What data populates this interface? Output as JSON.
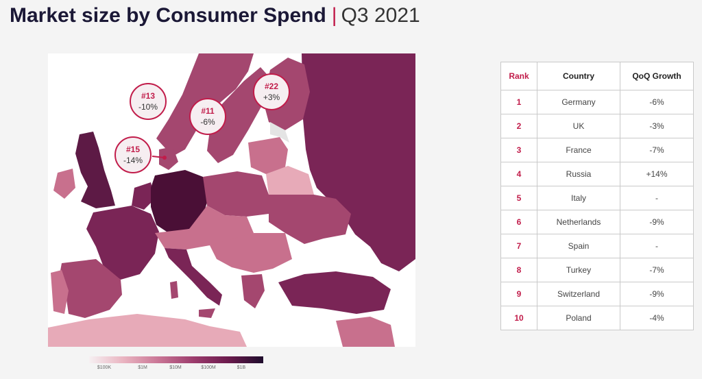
{
  "header": {
    "title": "Market size by Consumer Spend",
    "separator": "|",
    "period": "Q3 2021"
  },
  "map": {
    "callouts": [
      {
        "rank": "#13",
        "growth": "-10%"
      },
      {
        "rank": "#11",
        "growth": "-6%"
      },
      {
        "rank": "#22",
        "growth": "+3%"
      },
      {
        "rank": "#15",
        "growth": "-14%"
      }
    ],
    "legend": {
      "ticks": [
        "$100K",
        "$1M",
        "$10M",
        "$100M",
        "$1B"
      ]
    },
    "colors": {
      "sea": "#ffffff",
      "nodata": "#e4e4e4",
      "light": "#e7aab8",
      "mid_light": "#c8708d",
      "mid": "#a4476f",
      "dark": "#7a2556",
      "darkest": "#4a0f36",
      "accent": "#c11c4a"
    }
  },
  "table": {
    "headers": [
      "Rank",
      "Country",
      "QoQ Growth"
    ],
    "rows": [
      [
        "1",
        "Germany",
        "-6%"
      ],
      [
        "2",
        "UK",
        "-3%"
      ],
      [
        "3",
        "France",
        "-7%"
      ],
      [
        "4",
        "Russia",
        "+14%"
      ],
      [
        "5",
        "Italy",
        "-"
      ],
      [
        "6",
        "Netherlands",
        "-9%"
      ],
      [
        "7",
        "Spain",
        "-"
      ],
      [
        "8",
        "Turkey",
        "-7%"
      ],
      [
        "9",
        "Switzerland",
        "-9%"
      ],
      [
        "10",
        "Poland",
        "-4%"
      ]
    ]
  }
}
